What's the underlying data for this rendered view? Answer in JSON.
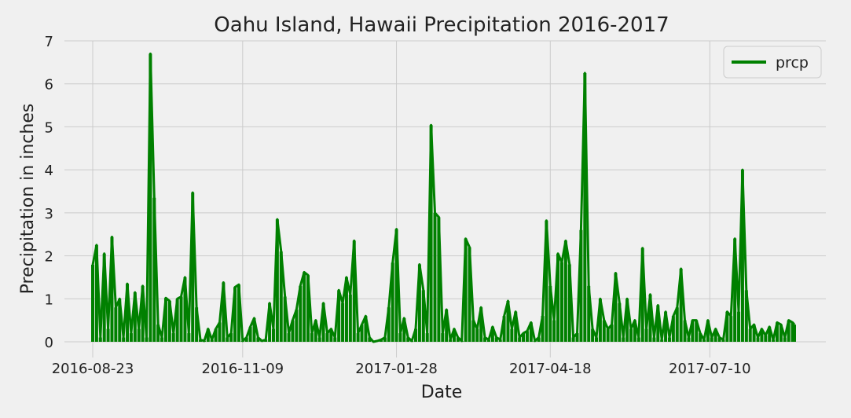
{
  "chart_data": {
    "type": "line",
    "title": "Oahu Island, Hawaii Precipitation 2016-2017",
    "xlabel": "Date",
    "ylabel": "Precipitation in inches",
    "xlim": [
      "2016-08-23",
      "2017-08-23"
    ],
    "ylim": [
      0,
      7
    ],
    "x_ticks": [
      "2016-08-23",
      "2016-11-09",
      "2017-01-28",
      "2017-04-18",
      "2017-07-10"
    ],
    "y_ticks": [
      0,
      1,
      2,
      3,
      4,
      5,
      6,
      7
    ],
    "grid": true,
    "legend": "top-right",
    "series": [
      {
        "name": "prcp",
        "color": "#008000",
        "x": [
          "2016-08-23",
          "2016-08-25",
          "2016-08-27",
          "2016-08-29",
          "2016-08-31",
          "2016-09-02",
          "2016-09-04",
          "2016-09-06",
          "2016-09-08",
          "2016-09-10",
          "2016-09-12",
          "2016-09-14",
          "2016-09-16",
          "2016-09-18",
          "2016-09-20",
          "2016-09-22",
          "2016-09-24",
          "2016-09-26",
          "2016-09-28",
          "2016-09-30",
          "2016-10-02",
          "2016-10-04",
          "2016-10-06",
          "2016-10-08",
          "2016-10-10",
          "2016-10-12",
          "2016-10-14",
          "2016-10-16",
          "2016-10-18",
          "2016-10-20",
          "2016-10-22",
          "2016-10-24",
          "2016-10-26",
          "2016-10-28",
          "2016-10-30",
          "2016-11-01",
          "2016-11-03",
          "2016-11-05",
          "2016-11-07",
          "2016-11-09",
          "2016-11-11",
          "2016-11-13",
          "2016-11-15",
          "2016-11-17",
          "2016-11-19",
          "2016-11-21",
          "2016-11-23",
          "2016-11-25",
          "2016-11-27",
          "2016-11-29",
          "2016-12-01",
          "2016-12-03",
          "2016-12-05",
          "2016-12-07",
          "2016-12-09",
          "2016-12-11",
          "2016-12-13",
          "2016-12-15",
          "2016-12-17",
          "2016-12-19",
          "2016-12-21",
          "2016-12-23",
          "2016-12-25",
          "2016-12-27",
          "2016-12-29",
          "2016-12-31",
          "2017-01-02",
          "2017-01-04",
          "2017-01-06",
          "2017-01-08",
          "2017-01-10",
          "2017-01-12",
          "2017-01-14",
          "2017-01-16",
          "2017-01-18",
          "2017-01-20",
          "2017-01-22",
          "2017-01-24",
          "2017-01-26",
          "2017-01-28",
          "2017-01-30",
          "2017-02-01",
          "2017-02-03",
          "2017-02-05",
          "2017-02-07",
          "2017-02-09",
          "2017-02-11",
          "2017-02-13",
          "2017-02-15",
          "2017-02-17",
          "2017-02-19",
          "2017-02-21",
          "2017-02-23",
          "2017-02-25",
          "2017-02-27",
          "2017-03-01",
          "2017-03-03",
          "2017-03-05",
          "2017-03-07",
          "2017-03-09",
          "2017-03-11",
          "2017-03-13",
          "2017-03-15",
          "2017-03-17",
          "2017-03-19",
          "2017-03-21",
          "2017-03-23",
          "2017-03-25",
          "2017-03-27",
          "2017-03-29",
          "2017-03-31",
          "2017-04-02",
          "2017-04-04",
          "2017-04-06",
          "2017-04-08",
          "2017-04-10",
          "2017-04-12",
          "2017-04-14",
          "2017-04-16",
          "2017-04-18",
          "2017-04-20",
          "2017-04-22",
          "2017-04-24",
          "2017-04-26",
          "2017-04-28",
          "2017-04-30",
          "2017-05-02",
          "2017-05-04",
          "2017-05-06",
          "2017-05-08",
          "2017-05-10",
          "2017-05-12",
          "2017-05-14",
          "2017-05-16",
          "2017-05-18",
          "2017-05-20",
          "2017-05-22",
          "2017-05-24",
          "2017-05-26",
          "2017-05-28",
          "2017-05-30",
          "2017-06-01",
          "2017-06-03",
          "2017-06-05",
          "2017-06-07",
          "2017-06-09",
          "2017-06-11",
          "2017-06-13",
          "2017-06-15",
          "2017-06-17",
          "2017-06-19",
          "2017-06-21",
          "2017-06-23",
          "2017-06-25",
          "2017-06-27",
          "2017-06-29",
          "2017-07-01",
          "2017-07-03",
          "2017-07-05",
          "2017-07-07",
          "2017-07-09",
          "2017-07-11",
          "2017-07-13",
          "2017-07-15",
          "2017-07-17",
          "2017-07-19",
          "2017-07-21",
          "2017-07-23",
          "2017-07-25",
          "2017-07-27",
          "2017-07-29",
          "2017-07-31",
          "2017-08-02",
          "2017-08-04",
          "2017-08-06",
          "2017-08-08",
          "2017-08-10",
          "2017-08-12",
          "2017-08-14",
          "2017-08-16",
          "2017-08-18",
          "2017-08-20",
          "2017-08-22",
          "2017-08-23"
        ],
        "y": [
          1.79,
          2.25,
          0.1,
          2.05,
          0.3,
          2.44,
          0.8,
          1.0,
          0.1,
          1.35,
          0.2,
          1.15,
          0.3,
          1.3,
          0.1,
          6.7,
          3.35,
          0.4,
          0.1,
          1.02,
          0.95,
          0.2,
          1.0,
          1.05,
          1.5,
          0.2,
          3.47,
          0.8,
          0.05,
          0.02,
          0.3,
          0.05,
          0.3,
          0.45,
          1.38,
          0.1,
          0.2,
          1.27,
          1.33,
          0.02,
          0.1,
          0.35,
          0.55,
          0.1,
          0.02,
          0.05,
          0.9,
          0.3,
          2.85,
          2.1,
          1.05,
          0.2,
          0.5,
          0.75,
          1.3,
          1.62,
          1.55,
          0.2,
          0.5,
          0.1,
          0.9,
          0.2,
          0.3,
          0.1,
          1.2,
          0.9,
          1.5,
          1.1,
          2.35,
          0.2,
          0.4,
          0.6,
          0.1,
          0.0,
          0.02,
          0.05,
          0.1,
          0.8,
          1.84,
          2.62,
          0.2,
          0.55,
          0.1,
          0.02,
          0.3,
          1.8,
          1.2,
          0.2,
          5.04,
          3.0,
          2.9,
          0.2,
          0.75,
          0.05,
          0.3,
          0.1,
          0.02,
          2.4,
          2.2,
          0.5,
          0.3,
          0.8,
          0.1,
          0.05,
          0.35,
          0.1,
          0.05,
          0.6,
          0.95,
          0.3,
          0.7,
          0.1,
          0.2,
          0.25,
          0.45,
          0.02,
          0.1,
          0.6,
          2.82,
          1.3,
          0.5,
          2.05,
          1.85,
          2.35,
          1.8,
          0.1,
          0.2,
          2.6,
          6.25,
          1.3,
          0.3,
          0.1,
          1.0,
          0.5,
          0.3,
          0.4,
          1.6,
          0.9,
          0.1,
          1.0,
          0.3,
          0.5,
          0.1,
          2.18,
          0.3,
          1.1,
          0.1,
          0.85,
          0.05,
          0.7,
          0.1,
          0.6,
          0.8,
          1.7,
          0.5,
          0.1,
          0.5,
          0.5,
          0.2,
          0.05,
          0.5,
          0.1,
          0.3,
          0.1,
          0.05,
          0.7,
          0.6,
          2.4,
          0.7,
          4.0,
          1.2,
          0.3,
          0.4,
          0.1,
          0.3,
          0.15,
          0.35,
          0.05,
          0.45,
          0.4,
          0.1,
          0.5,
          0.45,
          0.4
        ]
      }
    ]
  }
}
